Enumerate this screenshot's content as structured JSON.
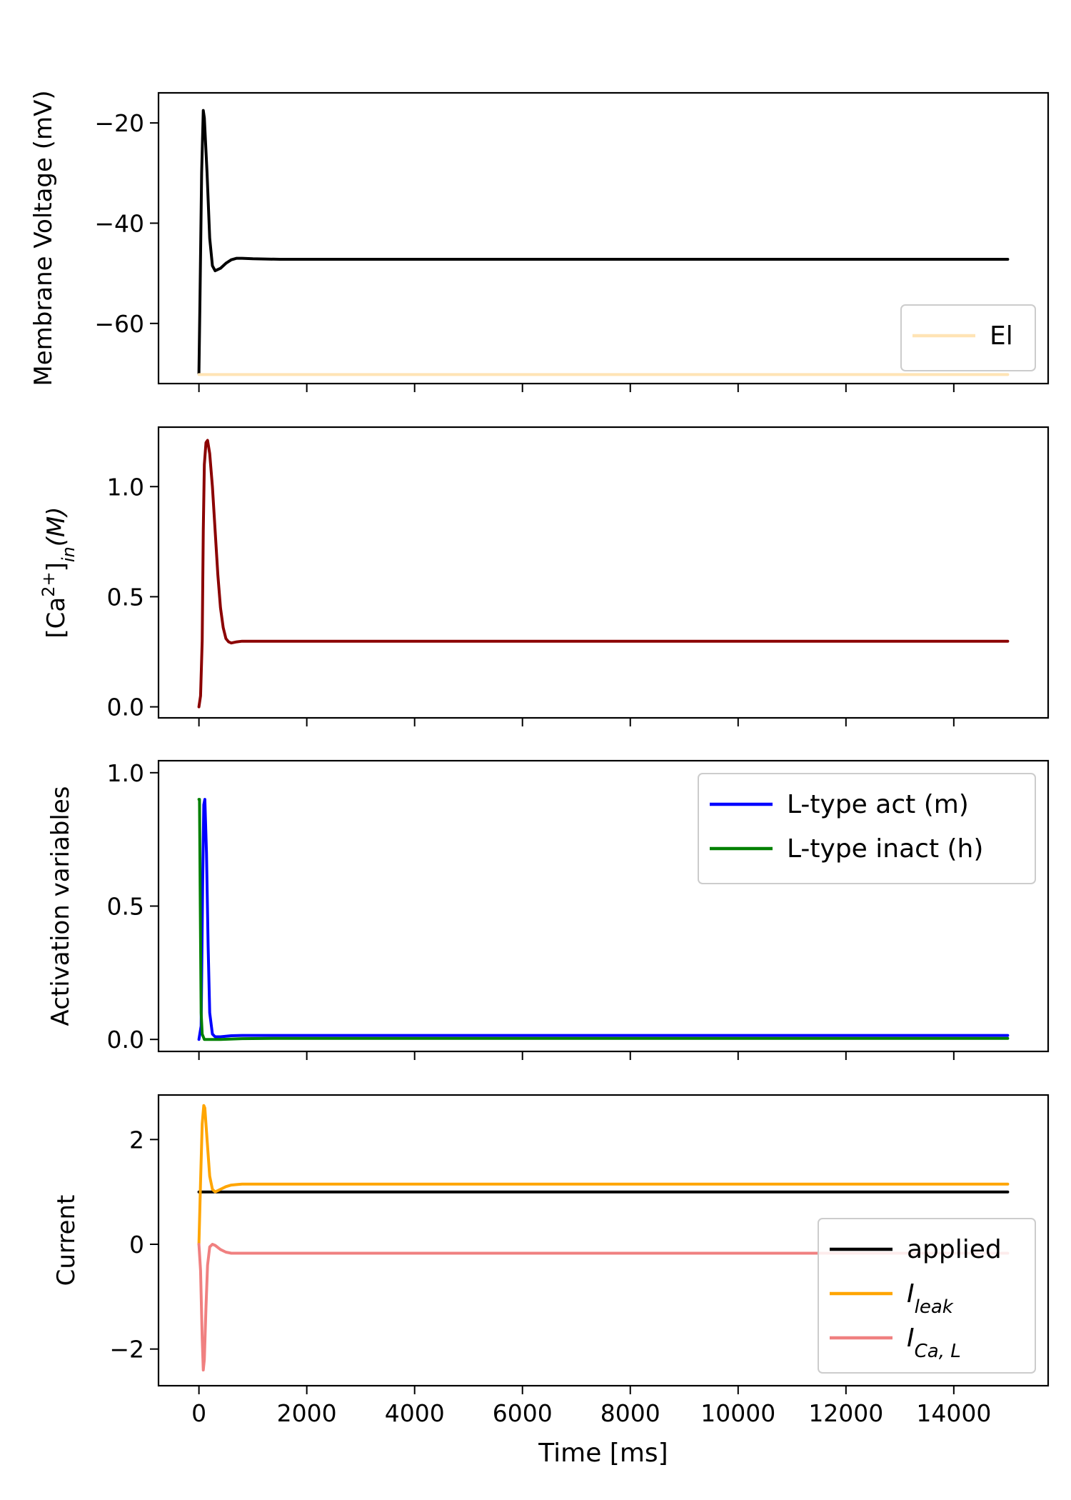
{
  "chart_data": [
    {
      "type": "line",
      "ylabel": "Membrane Voltage (mV)",
      "xlim": [
        -750,
        15750
      ],
      "ylim": [
        -72,
        -14
      ],
      "yticks": [
        -20,
        -40,
        -60
      ],
      "ytick_labels": [
        "−20",
        "−40",
        "−60"
      ],
      "legend": "lower right",
      "series": [
        {
          "name": "",
          "color": "#000000",
          "x": [
            0,
            20,
            50,
            80,
            100,
            150,
            200,
            250,
            300,
            400,
            500,
            600,
            700,
            800,
            1000,
            1500,
            2000,
            4000,
            6000,
            8000,
            10000,
            12000,
            14000,
            15000
          ],
          "y": [
            -70,
            -55,
            -30,
            -17.5,
            -19,
            -30,
            -43,
            -48.5,
            -49.5,
            -49,
            -48,
            -47.3,
            -47,
            -47,
            -47.1,
            -47.2,
            -47.2,
            -47.2,
            -47.2,
            -47.2,
            -47.2,
            -47.2,
            -47.2,
            -47.2
          ]
        },
        {
          "name": "El",
          "color": "#ffe4b5",
          "x": [
            0,
            15000
          ],
          "y": [
            -70.2,
            -70.2
          ]
        }
      ]
    },
    {
      "type": "line",
      "ylabel": "[Ca2+]in(M)",
      "ylabel_parts": {
        "open": "[Ca",
        "sup": "2+",
        "close": "]",
        "sub": "in",
        "unit": "(M)"
      },
      "xlim": [
        -750,
        15750
      ],
      "ylim": [
        -0.05,
        1.27
      ],
      "yticks": [
        0.0,
        0.5,
        1.0
      ],
      "ytick_labels": [
        "0.0",
        "0.5",
        "1.0"
      ],
      "series": [
        {
          "name": "",
          "color": "#8b0000",
          "x": [
            0,
            30,
            60,
            80,
            100,
            130,
            160,
            200,
            250,
            300,
            350,
            400,
            450,
            500,
            550,
            600,
            700,
            800,
            1000,
            2000,
            4000,
            6000,
            8000,
            10000,
            12000,
            14000,
            15000
          ],
          "y": [
            0.0,
            0.05,
            0.3,
            0.8,
            1.1,
            1.2,
            1.21,
            1.15,
            1.0,
            0.8,
            0.6,
            0.45,
            0.36,
            0.31,
            0.295,
            0.29,
            0.295,
            0.298,
            0.298,
            0.298,
            0.298,
            0.298,
            0.298,
            0.298,
            0.298,
            0.298,
            0.298
          ]
        }
      ]
    },
    {
      "type": "line",
      "ylabel": "Activation variables",
      "xlim": [
        -750,
        15750
      ],
      "ylim": [
        -0.045,
        1.045
      ],
      "yticks": [
        0.0,
        0.5,
        1.0
      ],
      "ytick_labels": [
        "0.0",
        "0.5",
        "1.0"
      ],
      "legend": "upper right",
      "series": [
        {
          "name": "L-type act (m)",
          "color": "#0000ff",
          "x": [
            0,
            40,
            70,
            90,
            110,
            140,
            170,
            200,
            250,
            300,
            400,
            600,
            800,
            1000,
            15000
          ],
          "y": [
            0.0,
            0.05,
            0.6,
            0.88,
            0.9,
            0.7,
            0.35,
            0.1,
            0.02,
            0.01,
            0.01,
            0.014,
            0.015,
            0.015,
            0.015
          ]
        },
        {
          "name": "L-type inact (h)",
          "color": "#008000",
          "x": [
            0,
            10,
            25,
            40,
            60,
            100,
            200,
            400,
            800,
            1500,
            15000
          ],
          "y": [
            0.9,
            0.9,
            0.5,
            0.1,
            0.02,
            0.0,
            0.0,
            0.0,
            0.003,
            0.004,
            0.004
          ]
        }
      ]
    },
    {
      "type": "line",
      "ylabel": "Current",
      "xlabel": "Time [ms]",
      "xlim": [
        -750,
        15750
      ],
      "ylim": [
        -2.7,
        2.85
      ],
      "yticks": [
        2,
        0,
        -2
      ],
      "ytick_labels": [
        "2",
        "0",
        "−2"
      ],
      "xticks": [
        0,
        2000,
        4000,
        6000,
        8000,
        10000,
        12000,
        14000
      ],
      "xtick_labels": [
        "0",
        "2000",
        "4000",
        "6000",
        "8000",
        "10000",
        "12000",
        "14000"
      ],
      "legend": "lower right",
      "series": [
        {
          "name": "applied",
          "label_parts": {
            "base": "applied",
            "sub": ""
          },
          "color": "#000000",
          "x": [
            0,
            15000
          ],
          "y": [
            1.0,
            1.0
          ]
        },
        {
          "name": "Ileak",
          "label_parts": {
            "base": "I",
            "sub": "leak"
          },
          "color": "#ffa500",
          "x": [
            0,
            30,
            60,
            90,
            110,
            150,
            200,
            250,
            300,
            400,
            500,
            600,
            700,
            800,
            1500,
            4000,
            8000,
            12000,
            15000
          ],
          "y": [
            0.0,
            1.2,
            2.3,
            2.65,
            2.6,
            2.0,
            1.3,
            1.05,
            1.0,
            1.05,
            1.1,
            1.13,
            1.14,
            1.15,
            1.15,
            1.15,
            1.15,
            1.15,
            1.15
          ]
        },
        {
          "name": "ICa,L",
          "label_parts": {
            "base": "I",
            "sub": "Ca, L"
          },
          "color": "#f08080",
          "x": [
            0,
            30,
            60,
            80,
            100,
            130,
            160,
            200,
            250,
            300,
            400,
            500,
            600,
            800,
            1500,
            15000
          ],
          "y": [
            0.0,
            -0.5,
            -1.8,
            -2.4,
            -2.2,
            -1.2,
            -0.4,
            -0.05,
            0.0,
            -0.02,
            -0.1,
            -0.15,
            -0.17,
            -0.17,
            -0.17,
            -0.17
          ]
        }
      ]
    }
  ]
}
